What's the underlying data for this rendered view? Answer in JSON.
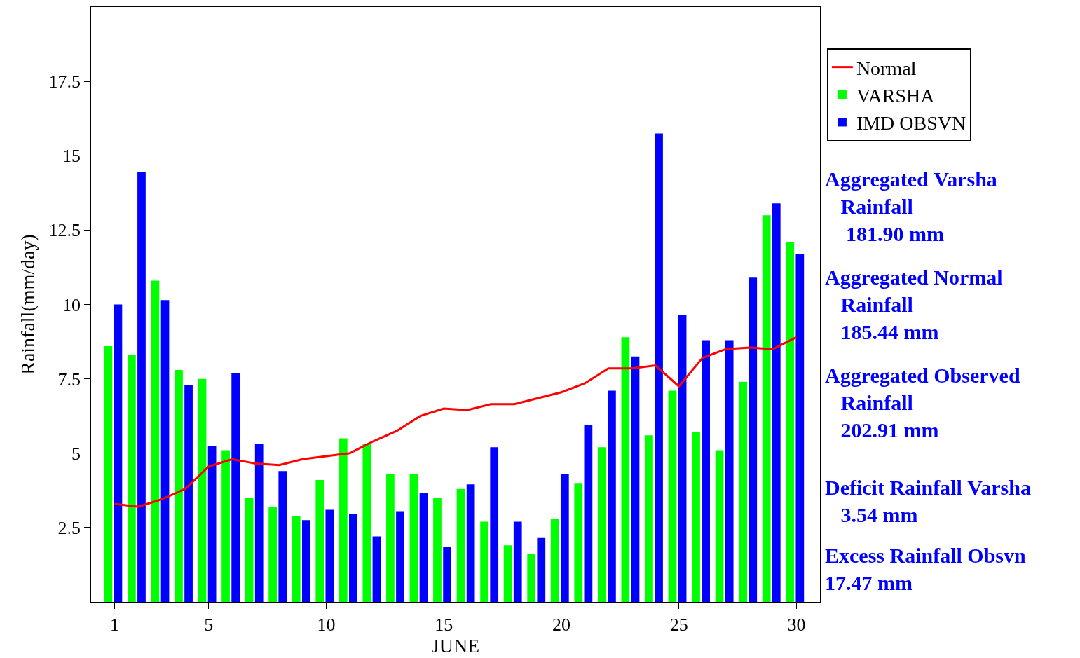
{
  "chart_data": {
    "type": "bar",
    "xlabel": "JUNE",
    "ylabel": "Rainfall(mm/day)",
    "x": [
      1,
      2,
      3,
      4,
      5,
      6,
      7,
      8,
      9,
      10,
      11,
      12,
      13,
      14,
      15,
      16,
      17,
      18,
      19,
      20,
      21,
      22,
      23,
      24,
      25,
      26,
      27,
      28,
      29,
      30
    ],
    "series": [
      {
        "name": "Normal",
        "type": "line",
        "color": "#ff0000",
        "values": [
          3.3,
          3.2,
          3.45,
          3.8,
          4.55,
          4.8,
          4.65,
          4.6,
          4.8,
          4.9,
          5.0,
          5.4,
          5.75,
          6.25,
          6.5,
          6.45,
          6.65,
          6.65,
          6.85,
          7.05,
          7.35,
          7.85,
          7.85,
          7.95,
          7.25,
          8.2,
          8.5,
          8.55,
          8.5,
          8.9
        ]
      },
      {
        "name": "VARSHA",
        "color": "#00ff00",
        "values": [
          8.6,
          8.3,
          10.8,
          7.8,
          7.5,
          5.1,
          3.5,
          3.2,
          2.9,
          4.1,
          5.5,
          5.3,
          4.3,
          4.3,
          3.5,
          3.8,
          2.7,
          1.9,
          1.6,
          2.8,
          4.0,
          5.2,
          8.9,
          5.6,
          7.1,
          5.7,
          5.1,
          7.4,
          13.0,
          12.1
        ]
      },
      {
        "name": "IMD OBSVN",
        "color": "#0000ff",
        "values": [
          10.0,
          14.45,
          10.15,
          7.3,
          5.25,
          7.7,
          5.3,
          4.4,
          2.75,
          3.1,
          2.95,
          2.2,
          3.05,
          3.65,
          1.85,
          3.95,
          5.2,
          2.7,
          2.15,
          4.3,
          5.95,
          7.1,
          8.25,
          15.75,
          9.65,
          8.8,
          8.8,
          10.9,
          13.4,
          11.7
        ]
      }
    ],
    "xlim": [
      0,
      31
    ],
    "xticks": [
      1,
      5,
      10,
      15,
      20,
      25,
      30
    ],
    "ylim": [
      0,
      20
    ],
    "yticks": [
      2.5,
      5,
      7.5,
      10,
      12.5,
      15,
      17.5
    ],
    "grid": false,
    "legend": "top right",
    "annotations": [
      "Aggregated Varsha\n   Rainfall\n    181.90 mm",
      "Aggregated Normal\n   Rainfall\n   185.44 mm",
      "Aggregated Observed\n   Rainfall\n   202.91 mm",
      "Deficit Rainfall Varsha\n   3.54 mm",
      "Excess Rainfall Obsvn\n17.47 mm"
    ]
  }
}
